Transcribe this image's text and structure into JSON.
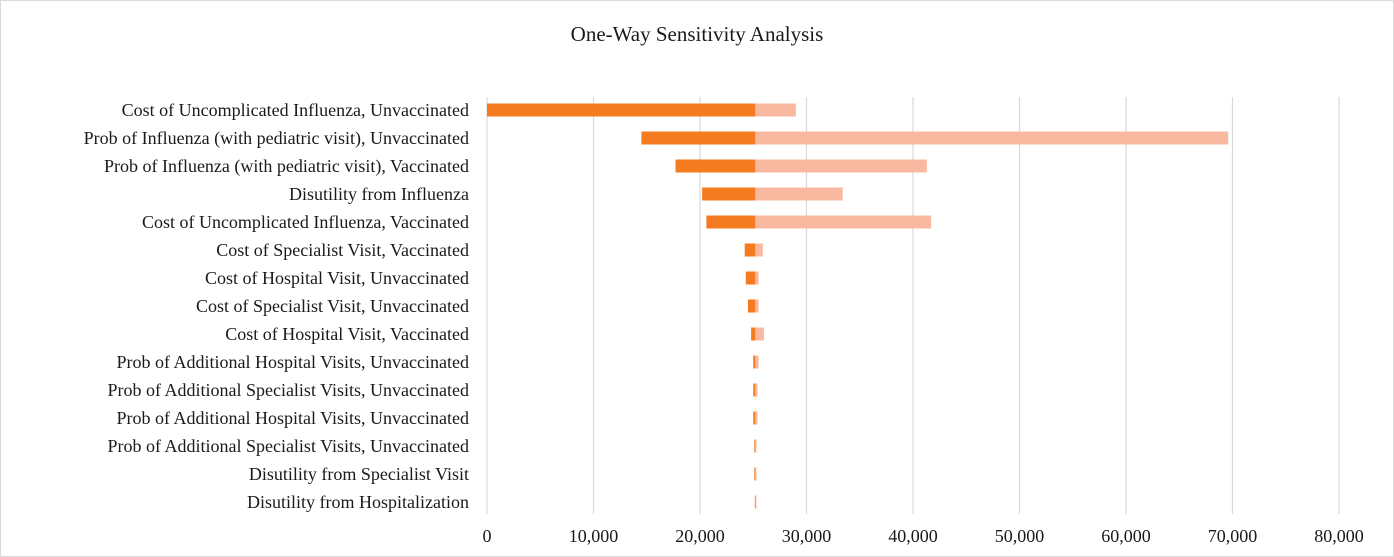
{
  "chart_data": {
    "type": "bar",
    "subtype": "tornado",
    "title": "One-Way Sensitivity Analysis",
    "xlim": [
      0,
      80000
    ],
    "xticks": [
      0,
      10000,
      20000,
      30000,
      40000,
      50000,
      60000,
      70000,
      80000
    ],
    "xtick_labels": [
      "0",
      "10,000",
      "20,000",
      "30,000",
      "40,000",
      "50,000",
      "60,000",
      "70,000",
      "80,000"
    ],
    "base_value": 25200,
    "grid": "vertical",
    "colors": {
      "low": "#f47b20",
      "high": "#f9b8a0",
      "grid": "#d9d9d9"
    },
    "categories": [
      "Cost of Uncomplicated Influenza, Unvaccinated",
      "Prob of Influenza (with pediatric visit), Unvaccinated",
      "Prob of Influenza (with pediatric visit), Vaccinated",
      "Disutility from Influenza",
      "Cost of Uncomplicated Influenza, Vaccinated",
      "Cost of Specialist Visit, Vaccinated",
      "Cost of Hospital Visit, Unvaccinated",
      "Cost of Specialist Visit, Unvaccinated",
      "Cost of Hospital Visit, Vaccinated",
      "Prob of Additional Hospital Visits, Unvaccinated",
      "Prob of Additional Specialist Visits, Unvaccinated",
      "Prob of Additional Hospital Visits, Unvaccinated",
      "Prob of Additional Specialist Visits, Unvaccinated",
      "Disutility from Specialist Visit",
      "Disutility from Hospitalization"
    ],
    "series": [
      {
        "values": [
          0,
          14500,
          17700,
          20200,
          20600,
          24200,
          24300,
          24500,
          24800,
          25000,
          25000,
          25000,
          25100,
          25100,
          25150
        ]
      },
      {
        "values": [
          29000,
          69600,
          41300,
          33400,
          41700,
          25900,
          25500,
          25500,
          26000,
          25500,
          25400,
          25400,
          25300,
          25300,
          25250
        ]
      }
    ]
  }
}
